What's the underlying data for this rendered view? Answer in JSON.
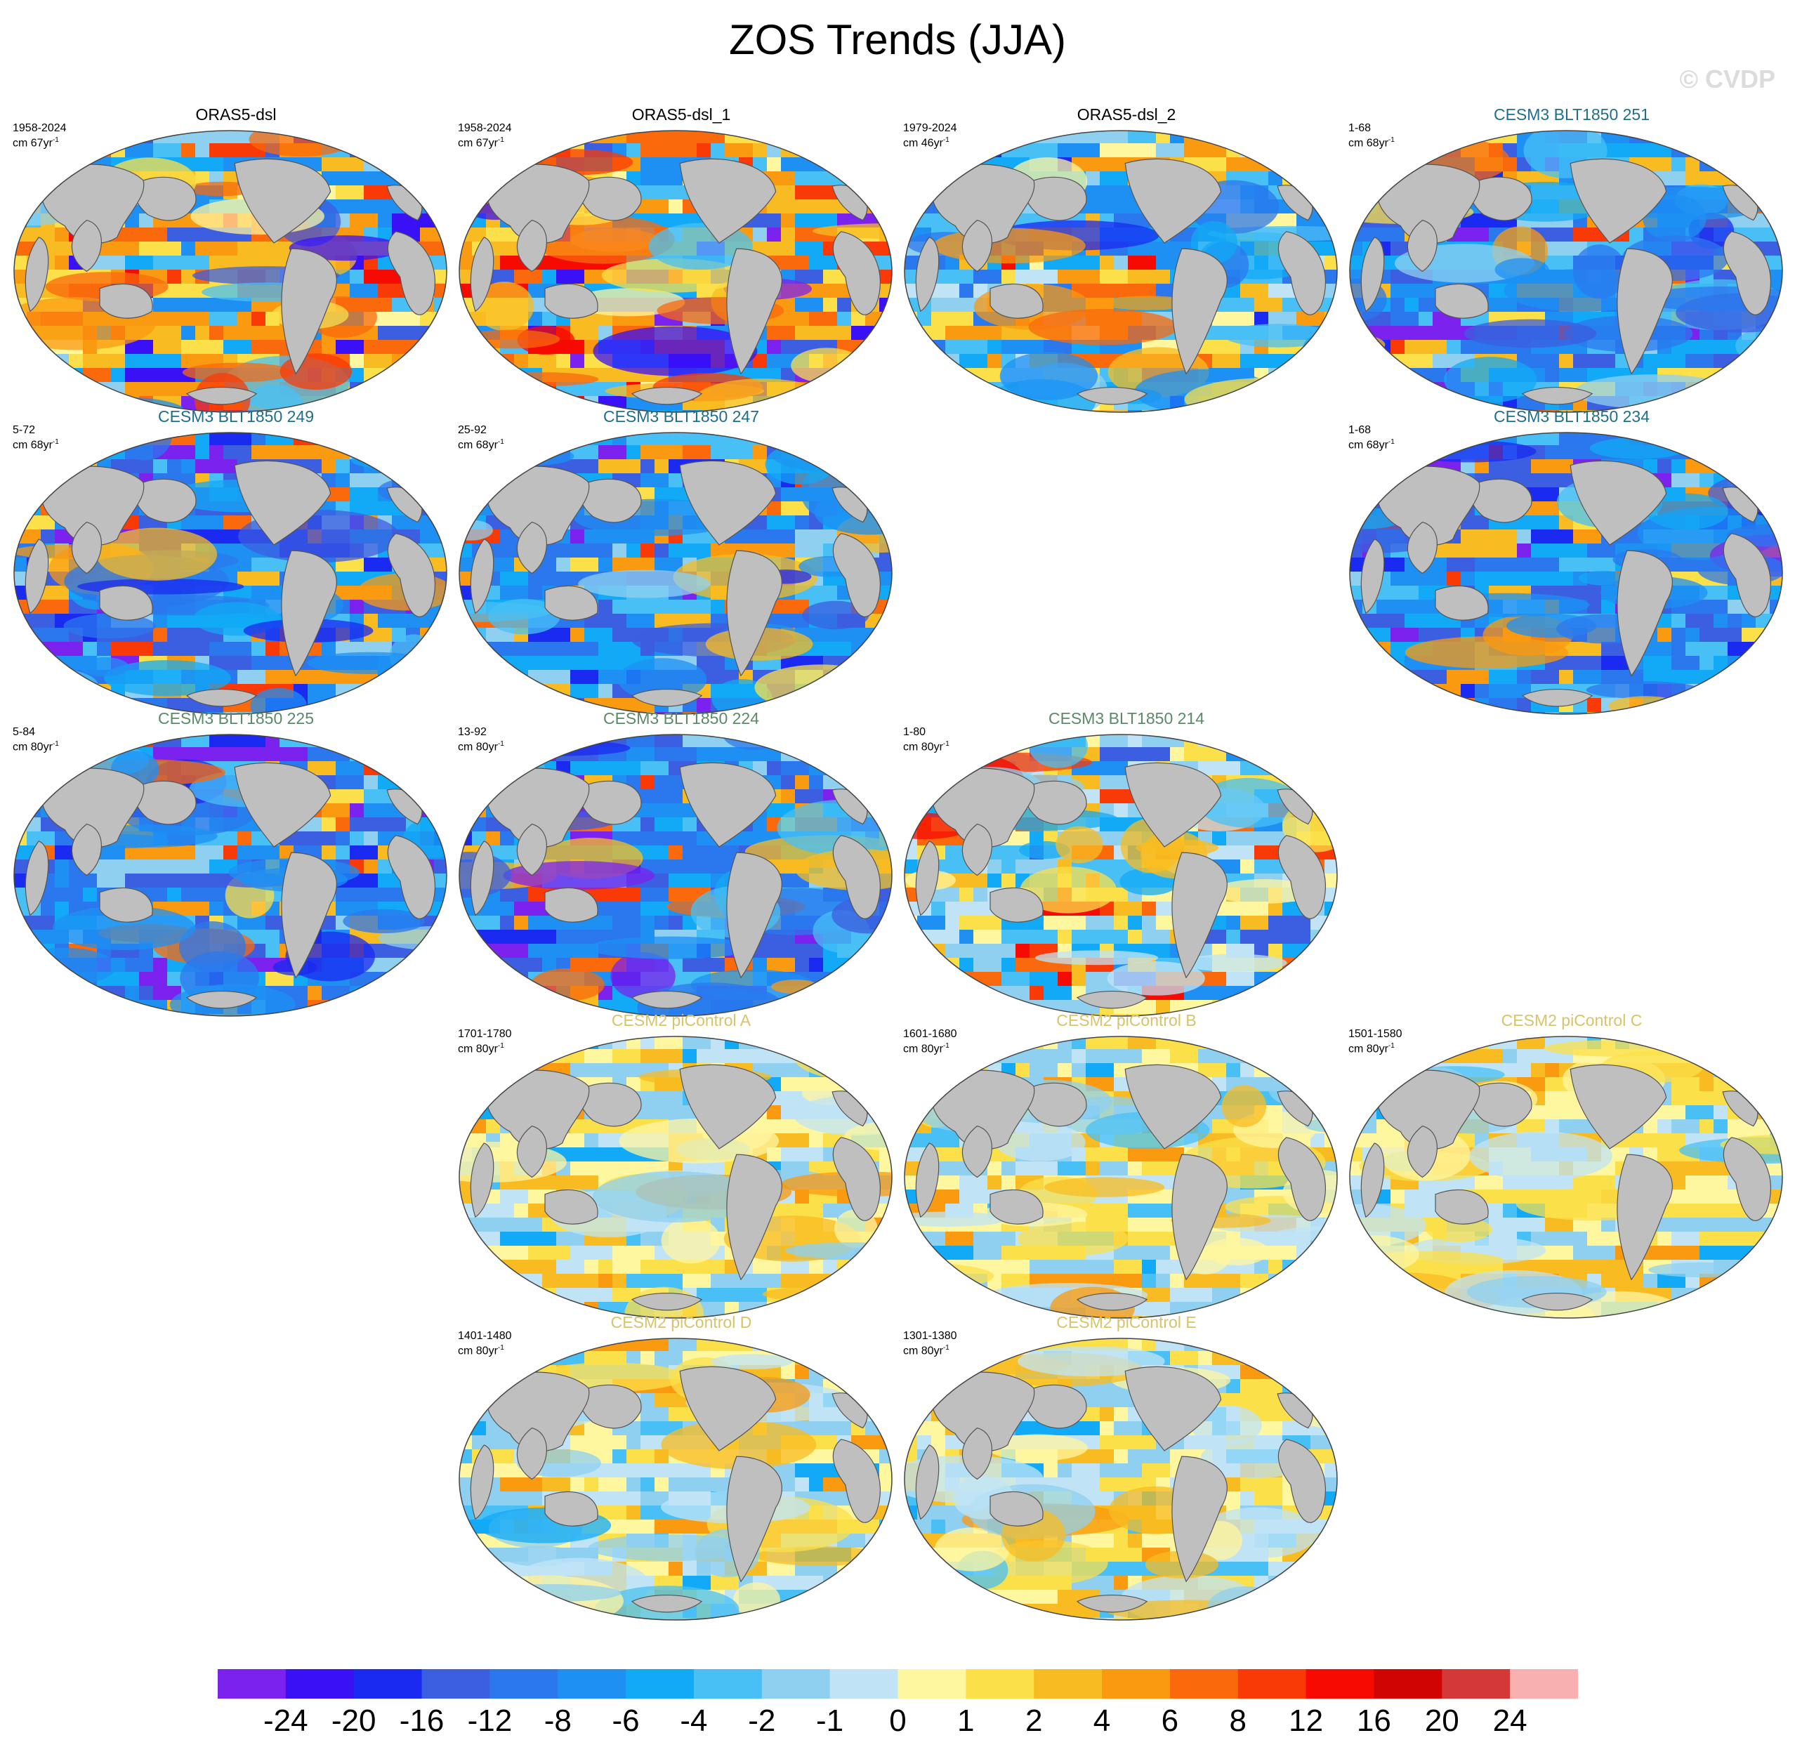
{
  "title": "ZOS Trends (JJA)",
  "watermark": "© CVDP",
  "panels": [
    {
      "title": "ORAS5-dsl",
      "period": "1958-2024",
      "units": "cm 67yr",
      "sup": "-1",
      "title_color": "#000000",
      "style": "obs",
      "row": 0,
      "col": 0
    },
    {
      "title": "ORAS5-dsl_1",
      "period": "1958-2024",
      "units": "cm 67yr",
      "sup": "-1",
      "title_color": "#000000",
      "style": "obs",
      "row": 0,
      "col": 1
    },
    {
      "title": "ORAS5-dsl_2",
      "period": "1979-2024",
      "units": "cm 46yr",
      "sup": "-1",
      "title_color": "#000000",
      "style": "obs2",
      "row": 0,
      "col": 2
    },
    {
      "title": "CESM3 BLT1850 251",
      "period": "1-68",
      "units": "cm 68yr",
      "sup": "-1",
      "title_color": "#1f6e8c",
      "style": "cesm3",
      "row": 0,
      "col": 3
    },
    {
      "title": "CESM3 BLT1850 249",
      "period": "5-72",
      "units": "cm 68yr",
      "sup": "-1",
      "title_color": "#1f6e8c",
      "style": "cesm3",
      "row": 1,
      "col": 0
    },
    {
      "title": "CESM3 BLT1850 247",
      "period": "25-92",
      "units": "cm 68yr",
      "sup": "-1",
      "title_color": "#1f6e8c",
      "style": "cesm3",
      "row": 1,
      "col": 1
    },
    {
      "title": "CESM3 BLT1850 234",
      "period": "1-68",
      "units": "cm 68yr",
      "sup": "-1",
      "title_color": "#1f6e8c",
      "style": "cesm3",
      "row": 1,
      "col": 3
    },
    {
      "title": "CESM3 BLT1850 225",
      "period": "5-84",
      "units": "cm 80yr",
      "sup": "-1",
      "title_color": "#5a8a68",
      "style": "cesm3",
      "row": 2,
      "col": 0
    },
    {
      "title": "CESM3 BLT1850 224",
      "period": "13-92",
      "units": "cm 80yr",
      "sup": "-1",
      "title_color": "#5a8a68",
      "style": "cesm3",
      "row": 2,
      "col": 1
    },
    {
      "title": "CESM3 BLT1850 214",
      "period": "1-80",
      "units": "cm 80yr",
      "sup": "-1",
      "title_color": "#5a8a68",
      "style": "mixed",
      "row": 2,
      "col": 2
    },
    {
      "title": "CESM2 piControl A",
      "period": "1701-1780",
      "units": "cm 80yr",
      "sup": "-1",
      "title_color": "#d8c468",
      "style": "pi",
      "row": 3,
      "col": 1
    },
    {
      "title": "CESM2 piControl B",
      "period": "1601-1680",
      "units": "cm 80yr",
      "sup": "-1",
      "title_color": "#d8c468",
      "style": "pi",
      "row": 3,
      "col": 2
    },
    {
      "title": "CESM2 piControl C",
      "period": "1501-1580",
      "units": "cm 80yr",
      "sup": "-1",
      "title_color": "#d8c468",
      "style": "pi",
      "row": 3,
      "col": 3
    },
    {
      "title": "CESM2 piControl D",
      "period": "1401-1480",
      "units": "cm 80yr",
      "sup": "-1",
      "title_color": "#d8c468",
      "style": "pi",
      "row": 4,
      "col": 1
    },
    {
      "title": "CESM2 piControl E",
      "period": "1301-1380",
      "units": "cm 80yr",
      "sup": "-1",
      "title_color": "#d8c468",
      "style": "pi",
      "row": 4,
      "col": 2
    }
  ],
  "colorbar": {
    "colors": [
      "#7b22ee",
      "#3a10f6",
      "#1a2af0",
      "#3c5ee0",
      "#2b78ee",
      "#1e90f4",
      "#12aaf6",
      "#48c0f6",
      "#8fd0f0",
      "#c0e4f6",
      "#fff6a0",
      "#fbe04a",
      "#f8bc22",
      "#f99a10",
      "#fa6a0c",
      "#fa3a06",
      "#f60a02",
      "#d00402",
      "#d43838",
      "#f8b0b0"
    ],
    "labels": [
      "-24",
      "-20",
      "-16",
      "-12",
      "-8",
      "-6",
      "-4",
      "-2",
      "-1",
      "0",
      "1",
      "2",
      "4",
      "6",
      "8",
      "12",
      "16",
      "20",
      "24"
    ]
  }
}
